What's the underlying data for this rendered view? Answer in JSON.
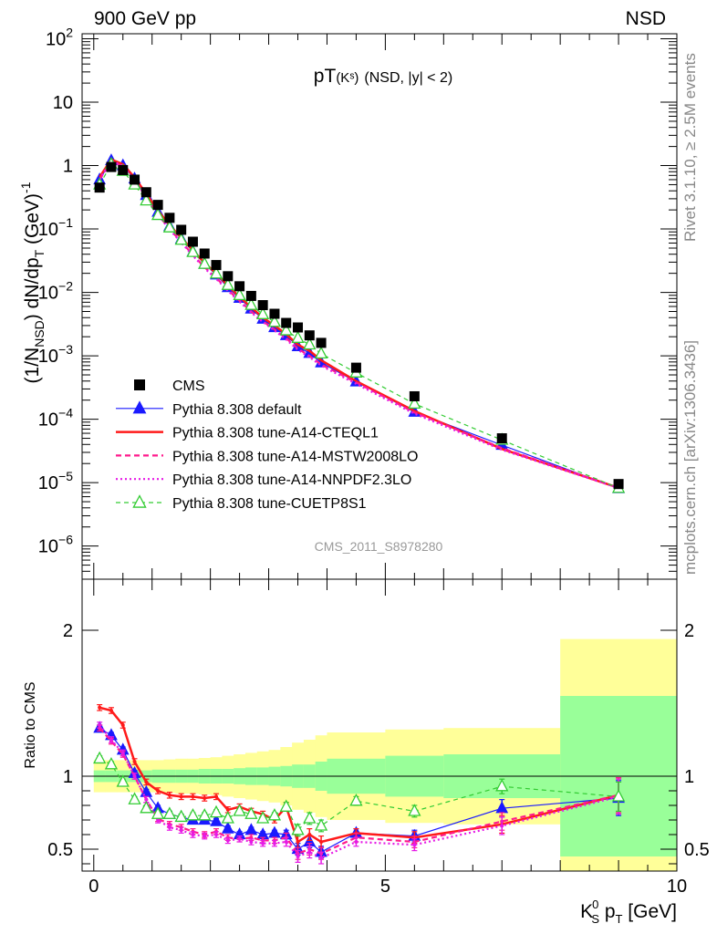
{
  "header": {
    "left": "900 GeV pp",
    "right": "NSD"
  },
  "side_text": {
    "rivet": "Rivet 3.1.10, ≥ 2.5M events",
    "mcplots": "mcplots.cern.ch [arXiv:1306.3436]"
  },
  "analysis_id": "CMS_2011_S8978280",
  "colors": {
    "data": "#000000",
    "default": "#1a1aff",
    "cteql1": "#ff1a1a",
    "mstw": "#ff1a8c",
    "nnpdf": "#e61ae6",
    "cuetp8s1": "#33cc33",
    "band_inner": "#99ff99",
    "band_outer": "#ffff99"
  },
  "chart_data": [
    {
      "type": "scatter",
      "panel": "main",
      "title": "pT(Kˢ) (NSD, |y| < 2)",
      "title_parts": {
        "main": "pT",
        "sub": "(Kˢ)",
        "cond": "(NSD, |y| < 2)"
      },
      "ylabel": "(1/N_NSD) dN/dp_T (GeV)^-1",
      "ylabel_parts": {
        "a": "(1/N",
        "sub": "NSD",
        "b": ") dN/dp",
        "sub2": "T",
        "c": " (GeV)",
        "sup": "-1"
      },
      "yscale": "log",
      "ylim": [
        3e-07,
        120
      ],
      "xlim": [
        -0.2,
        10
      ],
      "yticks": [
        {
          "v": 1e-06,
          "base": "10",
          "exp": "−6"
        },
        {
          "v": 1e-05,
          "base": "10",
          "exp": "−5"
        },
        {
          "v": 0.0001,
          "base": "10",
          "exp": "−4"
        },
        {
          "v": 0.001,
          "base": "10",
          "exp": "−3"
        },
        {
          "v": 0.01,
          "base": "10",
          "exp": "−2"
        },
        {
          "v": 0.1,
          "base": "10",
          "exp": "−1"
        },
        {
          "v": 1,
          "base": "1",
          "exp": ""
        },
        {
          "v": 10,
          "base": "10",
          "exp": ""
        },
        {
          "v": 100,
          "base": "10",
          "exp": "2"
        }
      ],
      "legend": {
        "placement": "bottom-left"
      },
      "data_series": {
        "name": "CMS",
        "x": [
          0.1,
          0.3,
          0.5,
          0.7,
          0.9,
          1.1,
          1.3,
          1.5,
          1.7,
          1.9,
          2.1,
          2.3,
          2.5,
          2.7,
          2.9,
          3.1,
          3.3,
          3.5,
          3.7,
          3.9,
          4.5,
          5.5,
          7.0,
          9.0
        ],
        "y": [
          0.45,
          0.95,
          0.85,
          0.6,
          0.38,
          0.24,
          0.15,
          0.097,
          0.063,
          0.041,
          0.027,
          0.018,
          0.0125,
          0.0088,
          0.0063,
          0.0046,
          0.0033,
          0.0028,
          0.0021,
          0.0016,
          0.00065,
          0.00023,
          5e-05,
          9.5e-06
        ]
      },
      "series": [
        {
          "name": "Pythia 8.308 default",
          "key": "default",
          "style": "solid",
          "marker": "triangle-filled",
          "x": [
            0.1,
            0.3,
            0.5,
            0.7,
            0.9,
            1.1,
            1.3,
            1.5,
            1.7,
            1.9,
            2.1,
            2.3,
            2.5,
            2.7,
            2.9,
            3.1,
            3.3,
            3.5,
            3.7,
            3.9,
            4.5,
            5.5,
            7.0,
            9.0
          ],
          "y": [
            0.6,
            1.2,
            1.0,
            0.62,
            0.34,
            0.185,
            0.11,
            0.07,
            0.044,
            0.028,
            0.019,
            0.012,
            0.0081,
            0.0055,
            0.0038,
            0.0028,
            0.0021,
            0.0014,
            0.0011,
            0.00078,
            0.00039,
            0.00013,
            3.9e-05,
            8.1e-06
          ]
        },
        {
          "name": "Pythia 8.308 tune-A14-CTEQL1",
          "key": "cteql1",
          "style": "solid-thick",
          "marker": "none",
          "x": [
            0.1,
            0.3,
            0.5,
            0.7,
            0.9,
            1.1,
            1.3,
            1.5,
            1.7,
            1.9,
            2.1,
            2.3,
            2.5,
            2.7,
            2.9,
            3.1,
            3.3,
            3.5,
            3.7,
            3.9,
            4.5,
            5.5,
            7.0,
            9.0
          ],
          "y": [
            0.66,
            1.25,
            1.05,
            0.65,
            0.36,
            0.195,
            0.115,
            0.073,
            0.046,
            0.029,
            0.02,
            0.0128,
            0.0085,
            0.0058,
            0.004,
            0.003,
            0.0022,
            0.0015,
            0.0012,
            0.00085,
            0.0004,
            0.000135,
            3.4e-05,
            8.3e-06
          ]
        },
        {
          "name": "Pythia 8.308 tune-A14-MSTW2008LO",
          "key": "mstw",
          "style": "dashed",
          "marker": "none",
          "x": [
            0.1,
            0.3,
            0.5,
            0.7,
            0.9,
            1.1,
            1.3,
            1.5,
            1.7,
            1.9,
            2.1,
            2.3,
            2.5,
            2.7,
            2.9,
            3.1,
            3.3,
            3.5,
            3.7,
            3.9,
            4.5,
            5.5,
            7.0,
            9.0
          ],
          "y": [
            0.6,
            1.18,
            0.98,
            0.6,
            0.32,
            0.17,
            0.1,
            0.063,
            0.039,
            0.025,
            0.017,
            0.011,
            0.0074,
            0.005,
            0.0035,
            0.0026,
            0.0019,
            0.0013,
            0.001,
            0.00073,
            0.00038,
            0.000128,
            3.5e-05,
            8.3e-06
          ]
        },
        {
          "name": "Pythia 8.308 tune-A14-NNPDF2.3LO",
          "key": "nnpdf",
          "style": "dotted",
          "marker": "none",
          "x": [
            0.1,
            0.3,
            0.5,
            0.7,
            0.9,
            1.1,
            1.3,
            1.5,
            1.7,
            1.9,
            2.1,
            2.3,
            2.5,
            2.7,
            2.9,
            3.1,
            3.3,
            3.5,
            3.7,
            3.9,
            4.5,
            5.5,
            7.0,
            9.0
          ],
          "y": [
            0.61,
            1.19,
            0.99,
            0.6,
            0.32,
            0.168,
            0.098,
            0.061,
            0.038,
            0.024,
            0.0163,
            0.0106,
            0.0071,
            0.0048,
            0.0034,
            0.0025,
            0.0018,
            0.00125,
            0.00095,
            0.0007,
            0.00036,
            0.000122,
            3.3e-05,
            8.2e-06
          ]
        },
        {
          "name": "Pythia 8.308 tune-CUETP8S1",
          "key": "cuetp8s1",
          "style": "dashed-thin",
          "marker": "triangle-open",
          "x": [
            0.1,
            0.3,
            0.5,
            0.7,
            0.9,
            1.1,
            1.3,
            1.5,
            1.7,
            1.9,
            2.1,
            2.3,
            2.5,
            2.7,
            2.9,
            3.1,
            3.3,
            3.5,
            3.7,
            3.9,
            4.5,
            5.5,
            7.0,
            9.0
          ],
          "y": [
            0.5,
            1.05,
            0.82,
            0.5,
            0.28,
            0.165,
            0.105,
            0.067,
            0.043,
            0.028,
            0.0197,
            0.013,
            0.009,
            0.0063,
            0.0045,
            0.0034,
            0.0025,
            0.0019,
            0.0015,
            0.00108,
            0.00054,
            0.000175,
            4.7e-05,
            8.2e-06
          ]
        }
      ]
    },
    {
      "type": "line",
      "panel": "ratio",
      "ylabel": "Ratio to CMS",
      "xlabel": "K_S^0 p_T [GeV]",
      "xlabel_parts": {
        "a": "K",
        "sub": "S",
        "sup": "0",
        "b": " p",
        "sub2": "T",
        "c": " [GeV]"
      },
      "xlim": [
        -0.2,
        10
      ],
      "ylim": [
        0.35,
        2.35
      ],
      "xticks": [
        "0",
        "5",
        "10"
      ],
      "yticks": [
        "0.5",
        "1",
        "2"
      ],
      "bands": {
        "edges": [
          0,
          0.2,
          0.4,
          0.6,
          0.8,
          1.0,
          1.2,
          1.4,
          1.6,
          1.8,
          2.0,
          2.2,
          2.4,
          2.6,
          2.8,
          3.0,
          3.2,
          3.4,
          3.6,
          3.8,
          4.0,
          5.0,
          6.0,
          8.0,
          10.0
        ],
        "inner": [
          0.04,
          0.04,
          0.04,
          0.04,
          0.04,
          0.045,
          0.045,
          0.045,
          0.045,
          0.05,
          0.05,
          0.05,
          0.055,
          0.06,
          0.06,
          0.065,
          0.07,
          0.08,
          0.08,
          0.1,
          0.12,
          0.14,
          0.15,
          0.55
        ],
        "outer": [
          0.11,
          0.11,
          0.11,
          0.11,
          0.11,
          0.11,
          0.115,
          0.12,
          0.12,
          0.125,
          0.13,
          0.14,
          0.15,
          0.16,
          0.17,
          0.18,
          0.2,
          0.23,
          0.25,
          0.28,
          0.3,
          0.32,
          0.33,
          0.94
        ]
      },
      "series": [
        {
          "key": "default",
          "name": "Pythia 8.308 default",
          "x": [
            0.1,
            0.3,
            0.5,
            0.7,
            0.9,
            1.1,
            1.3,
            1.5,
            1.7,
            1.9,
            2.1,
            2.3,
            2.5,
            2.7,
            2.9,
            3.1,
            3.3,
            3.5,
            3.7,
            3.9,
            4.5,
            5.5,
            7.0,
            9.0
          ],
          "y": [
            1.33,
            1.28,
            1.18,
            1.02,
            0.89,
            0.78,
            0.74,
            0.72,
            0.7,
            0.7,
            0.69,
            0.64,
            0.6,
            0.63,
            0.6,
            0.61,
            0.6,
            0.5,
            0.55,
            0.48,
            0.61,
            0.59,
            0.78,
            0.85
          ],
          "err": [
            0.02,
            0.02,
            0.02,
            0.02,
            0.02,
            0.02,
            0.02,
            0.02,
            0.02,
            0.02,
            0.02,
            0.02,
            0.02,
            0.02,
            0.02,
            0.02,
            0.03,
            0.04,
            0.04,
            0.04,
            0.03,
            0.04,
            0.06,
            0.12
          ]
        },
        {
          "key": "cteql1",
          "name": "Pythia 8.308 tune-A14-CTEQL1",
          "x": [
            0.1,
            0.3,
            0.5,
            0.7,
            0.9,
            1.1,
            1.3,
            1.5,
            1.7,
            1.9,
            2.1,
            2.3,
            2.5,
            2.7,
            2.9,
            3.1,
            3.3,
            3.5,
            3.7,
            3.9,
            4.5,
            5.5,
            7.0,
            9.0
          ],
          "y": [
            1.47,
            1.45,
            1.35,
            1.1,
            0.96,
            0.9,
            0.87,
            0.86,
            0.86,
            0.85,
            0.86,
            0.77,
            0.79,
            0.76,
            0.74,
            0.7,
            0.79,
            0.55,
            0.6,
            0.55,
            0.61,
            0.58,
            0.67,
            0.87
          ],
          "err": [
            0.02,
            0.02,
            0.02,
            0.02,
            0.02,
            0.02,
            0.02,
            0.02,
            0.02,
            0.02,
            0.02,
            0.02,
            0.02,
            0.02,
            0.02,
            0.02,
            0.03,
            0.04,
            0.04,
            0.04,
            0.03,
            0.04,
            0.06,
            0.12
          ]
        },
        {
          "key": "mstw",
          "name": "Pythia 8.308 tune-A14-MSTW2008LO",
          "x": [
            0.1,
            0.3,
            0.5,
            0.7,
            0.9,
            1.1,
            1.3,
            1.5,
            1.7,
            1.9,
            2.1,
            2.3,
            2.5,
            2.7,
            2.9,
            3.1,
            3.3,
            3.5,
            3.7,
            3.9,
            4.5,
            5.5,
            7.0,
            9.0
          ],
          "y": [
            1.33,
            1.24,
            1.15,
            1.0,
            0.84,
            0.71,
            0.67,
            0.65,
            0.62,
            0.6,
            0.62,
            0.58,
            0.57,
            0.58,
            0.56,
            0.56,
            0.58,
            0.47,
            0.5,
            0.47,
            0.58,
            0.55,
            0.69,
            0.87
          ],
          "err": [
            0.02,
            0.02,
            0.02,
            0.02,
            0.02,
            0.02,
            0.02,
            0.02,
            0.02,
            0.02,
            0.02,
            0.02,
            0.02,
            0.02,
            0.02,
            0.02,
            0.03,
            0.04,
            0.04,
            0.04,
            0.03,
            0.04,
            0.06,
            0.12
          ]
        },
        {
          "key": "nnpdf",
          "name": "Pythia 8.308 tune-A14-NNPDF2.3LO",
          "x": [
            0.1,
            0.3,
            0.5,
            0.7,
            0.9,
            1.1,
            1.3,
            1.5,
            1.7,
            1.9,
            2.1,
            2.3,
            2.5,
            2.7,
            2.9,
            3.1,
            3.3,
            3.5,
            3.7,
            3.9,
            4.5,
            5.5,
            7.0,
            9.0
          ],
          "y": [
            1.35,
            1.25,
            1.16,
            1.0,
            0.84,
            0.7,
            0.65,
            0.63,
            0.6,
            0.59,
            0.6,
            0.56,
            0.57,
            0.55,
            0.54,
            0.54,
            0.55,
            0.45,
            0.48,
            0.44,
            0.55,
            0.53,
            0.66,
            0.86
          ],
          "err": [
            0.02,
            0.02,
            0.02,
            0.02,
            0.02,
            0.02,
            0.02,
            0.02,
            0.02,
            0.02,
            0.02,
            0.02,
            0.02,
            0.02,
            0.02,
            0.02,
            0.03,
            0.04,
            0.04,
            0.04,
            0.03,
            0.04,
            0.06,
            0.12
          ]
        },
        {
          "key": "cuetp8s1",
          "name": "Pythia 8.308 tune-CUETP8S1",
          "x": [
            0.1,
            0.3,
            0.5,
            0.7,
            0.9,
            1.1,
            1.3,
            1.5,
            1.7,
            1.9,
            2.1,
            2.3,
            2.5,
            2.7,
            2.9,
            3.1,
            3.3,
            3.5,
            3.7,
            3.9,
            4.5,
            5.5,
            7.0,
            9.0
          ],
          "y": [
            1.12,
            1.08,
            0.96,
            0.84,
            0.78,
            0.74,
            0.74,
            0.72,
            0.73,
            0.73,
            0.75,
            0.71,
            0.76,
            0.74,
            0.71,
            0.73,
            0.79,
            0.63,
            0.71,
            0.66,
            0.83,
            0.76,
            0.93,
            0.86
          ],
          "err": [
            0.02,
            0.02,
            0.02,
            0.02,
            0.02,
            0.02,
            0.02,
            0.02,
            0.02,
            0.02,
            0.02,
            0.02,
            0.02,
            0.02,
            0.02,
            0.02,
            0.03,
            0.04,
            0.04,
            0.04,
            0.03,
            0.04,
            0.05,
            0.1
          ]
        }
      ]
    }
  ]
}
